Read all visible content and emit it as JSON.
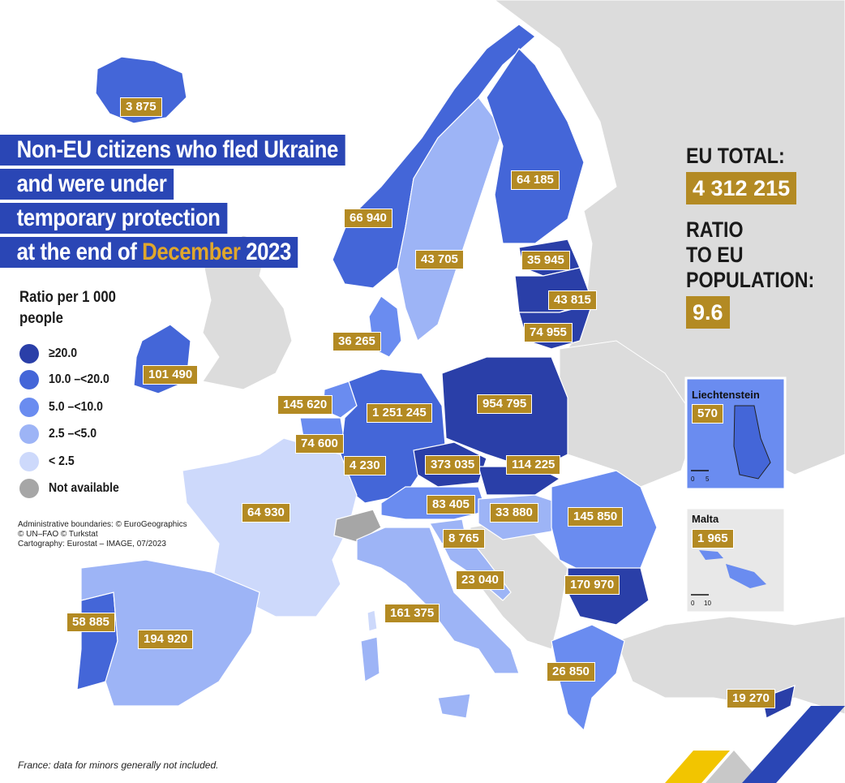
{
  "title": {
    "line1": "Non-EU citizens who fled Ukraine",
    "line2": "and were under",
    "line3": "temporary protection",
    "line4_prefix": "at the end of ",
    "line4_highlight": "December",
    "line4_suffix": " 2023"
  },
  "legend": {
    "title": "Ratio per 1 000 people",
    "items": [
      {
        "label": "≥20.0",
        "color": "#2a3fa8"
      },
      {
        "label": "10.0 –<20.0",
        "color": "#4466d8"
      },
      {
        "label": "5.0 –<10.0",
        "color": "#6a8cf0"
      },
      {
        "label": "2.5 –<5.0",
        "color": "#9db4f6"
      },
      {
        "label": "< 2.5",
        "color": "#cdd9fb"
      },
      {
        "label": "Not available",
        "color": "#a6a6a6"
      }
    ]
  },
  "credits": {
    "line1": "Administrative boundaries: © EuroGeographics",
    "line2": "© UN–FAO © Turkstat",
    "line3": "Cartography: Eurostat – IMAGE, 07/2023"
  },
  "footnote": "France: data for minors generally not included.",
  "eu_total": {
    "heading": "EU TOTAL:",
    "value": "4 312 215"
  },
  "ratio": {
    "heading_1": "RATIO",
    "heading_2": "TO EU",
    "heading_3": "POPULATION:",
    "value": "9.6"
  },
  "countries": {
    "iceland": "3 875",
    "norway": "66 940",
    "sweden": "43 705",
    "finland": "64 185",
    "estonia": "35 945",
    "latvia": "43 815",
    "lithuania": "74 955",
    "denmark": "36 265",
    "ireland": "101 490",
    "netherlands": "145 620",
    "belgium": "74 600",
    "luxembourg": "4 230",
    "germany": "1 251 245",
    "poland": "954 795",
    "czechia": "373 035",
    "slovakia": "114 225",
    "austria": "83 405",
    "hungary": "33 880",
    "romania": "145 850",
    "slovenia": "8 765",
    "croatia": "23 040",
    "france": "64 930",
    "italy": "161 375",
    "bulgaria": "170 970",
    "portugal": "58 885",
    "spain": "194 920",
    "greece": "26 850",
    "cyprus": "19 270"
  },
  "insets": {
    "liechtenstein": {
      "title": "Liechtenstein",
      "value": "570",
      "scale_0": "0",
      "scale_max": "5"
    },
    "malta": {
      "title": "Malta",
      "value": "1 965",
      "scale_0": "0",
      "scale_max": "10"
    }
  },
  "colors": {
    "sea": "#ffffff",
    "non_eu_land": "#dcdcdc",
    "label_bg": "#b38a23",
    "title_bg": "#2a46b5",
    "highlight": "#e0a72c"
  }
}
